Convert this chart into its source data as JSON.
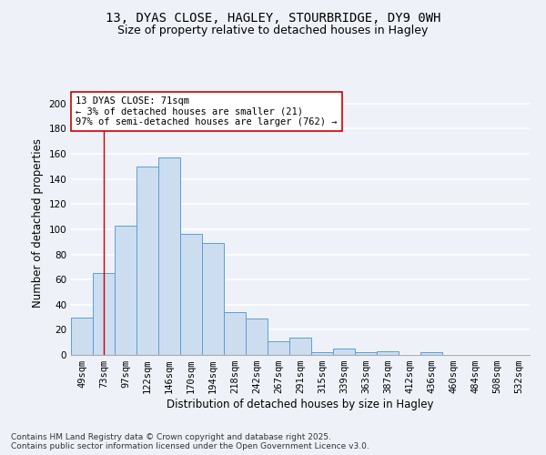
{
  "title_line1": "13, DYAS CLOSE, HAGLEY, STOURBRIDGE, DY9 0WH",
  "title_line2": "Size of property relative to detached houses in Hagley",
  "xlabel": "Distribution of detached houses by size in Hagley",
  "ylabel": "Number of detached properties",
  "bar_color": "#ccddf0",
  "bar_edge_color": "#5a9fd4",
  "categories": [
    "49sqm",
    "73sqm",
    "97sqm",
    "122sqm",
    "146sqm",
    "170sqm",
    "194sqm",
    "218sqm",
    "242sqm",
    "267sqm",
    "291sqm",
    "315sqm",
    "339sqm",
    "363sqm",
    "387sqm",
    "412sqm",
    "436sqm",
    "460sqm",
    "484sqm",
    "508sqm",
    "532sqm"
  ],
  "values": [
    30,
    65,
    103,
    150,
    157,
    96,
    89,
    34,
    29,
    11,
    14,
    2,
    5,
    2,
    3,
    0,
    2,
    0,
    0,
    0,
    0
  ],
  "ylim": [
    0,
    210
  ],
  "yticks": [
    0,
    20,
    40,
    60,
    80,
    100,
    120,
    140,
    160,
    180,
    200
  ],
  "vline_x": 1,
  "vline_color": "#cc0000",
  "annotation_text": "13 DYAS CLOSE: 71sqm\n← 3% of detached houses are smaller (21)\n97% of semi-detached houses are larger (762) →",
  "footer_text": "Contains HM Land Registry data © Crown copyright and database right 2025.\nContains public sector information licensed under the Open Government Licence v3.0.",
  "background_color": "#eef2f8",
  "grid_color": "#ffffff",
  "title_fontsize": 10,
  "subtitle_fontsize": 9,
  "axis_label_fontsize": 8.5,
  "tick_fontsize": 7.5,
  "annotation_fontsize": 7.5,
  "footer_fontsize": 6.5
}
